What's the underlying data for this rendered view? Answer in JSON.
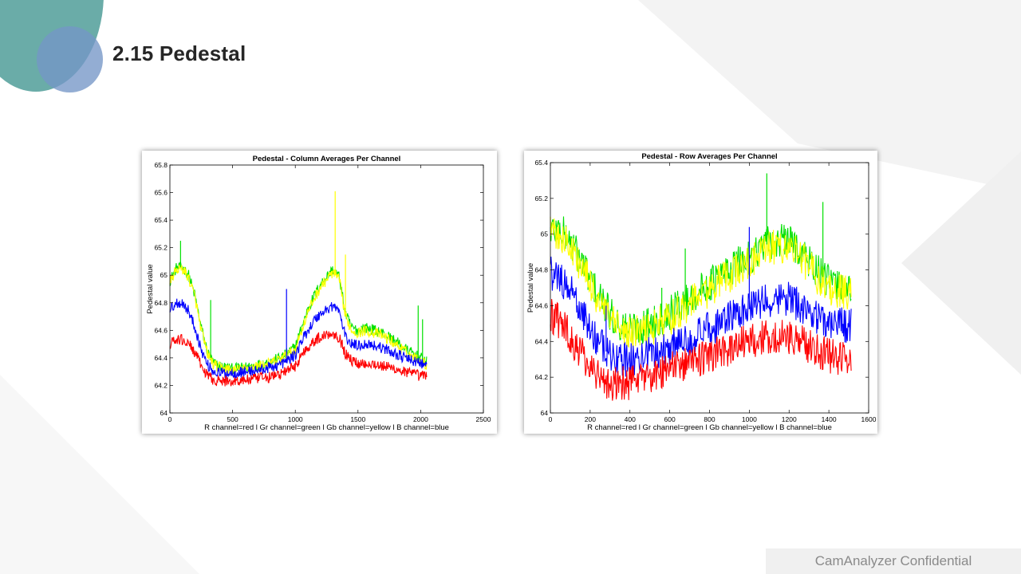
{
  "slide": {
    "title": "2.15  Pedestal",
    "footer": "CamAnalyzer  Confidential"
  },
  "colors": {
    "accent_teal": "#6aaca8",
    "accent_blue": "#7496c6",
    "red": "#ff0000",
    "green": "#00e000",
    "yellow": "#ffff00",
    "blue": "#0000ff"
  },
  "chart_data": [
    {
      "type": "line",
      "title": "Pedestal - Column Averages Per Channel",
      "xlabel": "R channel=red l Gr channel=green l Gb channel=yellow l B channel=blue",
      "ylabel": "Pedestal value",
      "xlim": [
        0,
        2500
      ],
      "ylim": [
        64,
        65.8
      ],
      "xticks": [
        0,
        500,
        1000,
        1500,
        2000,
        2500
      ],
      "yticks": [
        64,
        64.2,
        64.4,
        64.6,
        64.8,
        65,
        65.2,
        65.4,
        65.6,
        65.8
      ],
      "grid": false,
      "noise_estimate": 0.04,
      "series": [
        {
          "color": "green",
          "x": [
            0,
            50,
            100,
            150,
            200,
            250,
            300,
            350,
            400,
            450,
            500,
            600,
            700,
            800,
            900,
            1000,
            1050,
            1100,
            1150,
            1200,
            1250,
            1300,
            1350,
            1400,
            1450,
            1500,
            1550,
            1600,
            1700,
            1800,
            1900,
            2000,
            2048
          ],
          "values": [
            64.96,
            65.05,
            65.06,
            65.0,
            64.85,
            64.62,
            64.44,
            64.36,
            64.34,
            64.33,
            64.32,
            64.33,
            64.35,
            64.37,
            64.41,
            64.48,
            64.62,
            64.75,
            64.85,
            64.93,
            64.99,
            65.04,
            64.99,
            64.72,
            64.62,
            64.6,
            64.62,
            64.61,
            64.58,
            64.52,
            64.45,
            64.4,
            64.37
          ]
        },
        {
          "color": "yellow",
          "x": [
            0,
            50,
            100,
            150,
            200,
            250,
            300,
            350,
            400,
            450,
            500,
            600,
            700,
            800,
            900,
            1000,
            1050,
            1100,
            1150,
            1200,
            1250,
            1300,
            1350,
            1400,
            1450,
            1500,
            1550,
            1600,
            1700,
            1800,
            1900,
            2000,
            2048
          ],
          "values": [
            64.95,
            65.04,
            65.05,
            64.98,
            64.84,
            64.6,
            64.43,
            64.35,
            64.33,
            64.32,
            64.31,
            64.32,
            64.34,
            64.36,
            64.4,
            64.46,
            64.6,
            64.73,
            64.83,
            64.91,
            64.97,
            65.02,
            64.97,
            64.7,
            64.6,
            64.58,
            64.6,
            64.59,
            64.56,
            64.5,
            64.43,
            64.38,
            64.35
          ]
        },
        {
          "color": "blue",
          "x": [
            0,
            50,
            100,
            150,
            200,
            250,
            300,
            350,
            400,
            450,
            500,
            600,
            700,
            800,
            900,
            1000,
            1050,
            1100,
            1150,
            1200,
            1250,
            1300,
            1350,
            1400,
            1450,
            1500,
            1550,
            1600,
            1700,
            1800,
            1900,
            2000,
            2048
          ],
          "values": [
            64.75,
            64.8,
            64.8,
            64.74,
            64.62,
            64.46,
            64.35,
            64.3,
            64.29,
            64.29,
            64.29,
            64.3,
            64.31,
            64.33,
            64.36,
            64.42,
            64.52,
            64.6,
            64.67,
            64.72,
            64.75,
            64.78,
            64.74,
            64.55,
            64.5,
            64.49,
            64.5,
            64.5,
            64.47,
            64.43,
            64.39,
            64.36,
            64.34
          ]
        },
        {
          "color": "red",
          "x": [
            0,
            50,
            100,
            150,
            200,
            250,
            300,
            350,
            400,
            450,
            500,
            600,
            700,
            800,
            900,
            1000,
            1050,
            1100,
            1150,
            1200,
            1250,
            1300,
            1350,
            1400,
            1450,
            1500,
            1550,
            1600,
            1700,
            1800,
            1900,
            2000,
            2048
          ],
          "values": [
            64.5,
            64.53,
            64.53,
            64.5,
            64.44,
            64.34,
            64.27,
            64.24,
            64.23,
            64.23,
            64.23,
            64.24,
            64.25,
            64.26,
            64.29,
            64.34,
            64.42,
            64.48,
            64.52,
            64.55,
            64.57,
            64.58,
            64.55,
            64.43,
            64.38,
            64.36,
            64.36,
            64.36,
            64.34,
            64.32,
            64.29,
            64.27,
            64.27
          ]
        }
      ],
      "spikes": [
        {
          "color": "green",
          "x": 325,
          "y": 64.82
        },
        {
          "color": "blue",
          "x": 930,
          "y": 64.9
        },
        {
          "color": "yellow",
          "x": 1318,
          "y": 65.61
        },
        {
          "color": "yellow",
          "x": 1400,
          "y": 65.15
        },
        {
          "color": "green",
          "x": 1980,
          "y": 64.78
        },
        {
          "color": "green",
          "x": 2015,
          "y": 64.68
        },
        {
          "color": "green",
          "x": 85,
          "y": 65.25
        }
      ]
    },
    {
      "type": "line",
      "title": "Pedestal - Row Averages Per Channel",
      "xlabel": "R channel=red l Gr channel=green l Gb channel=yellow l B channel=blue",
      "ylabel": "Pedestal value",
      "xlim": [
        0,
        1600
      ],
      "ylim": [
        64,
        65.4
      ],
      "xticks": [
        0,
        200,
        400,
        600,
        800,
        1000,
        1200,
        1400,
        1600
      ],
      "yticks": [
        64,
        64.2,
        64.4,
        64.6,
        64.8,
        65,
        65.2,
        65.4
      ],
      "grid": false,
      "noise_estimate": 0.1,
      "series": [
        {
          "color": "green",
          "x": [
            0,
            50,
            100,
            150,
            200,
            250,
            300,
            350,
            400,
            450,
            500,
            600,
            700,
            800,
            900,
            1000,
            1050,
            1100,
            1150,
            1200,
            1250,
            1300,
            1350,
            1400,
            1450,
            1500,
            1512
          ],
          "values": [
            65.03,
            65.02,
            64.96,
            64.86,
            64.75,
            64.64,
            64.55,
            64.49,
            64.47,
            64.48,
            64.5,
            64.56,
            64.64,
            64.72,
            64.8,
            64.87,
            64.92,
            64.95,
            64.96,
            64.96,
            64.92,
            64.85,
            64.78,
            64.73,
            64.71,
            64.7,
            64.7
          ]
        },
        {
          "color": "yellow",
          "x": [
            0,
            50,
            100,
            150,
            200,
            250,
            300,
            350,
            400,
            450,
            500,
            600,
            700,
            800,
            900,
            1000,
            1050,
            1100,
            1150,
            1200,
            1250,
            1300,
            1350,
            1400,
            1450,
            1500,
            1512
          ],
          "values": [
            65.0,
            64.99,
            64.93,
            64.83,
            64.72,
            64.61,
            64.52,
            64.46,
            64.44,
            64.45,
            64.47,
            64.53,
            64.61,
            64.69,
            64.77,
            64.84,
            64.89,
            64.92,
            64.93,
            64.93,
            64.89,
            64.82,
            64.75,
            64.7,
            64.68,
            64.67,
            64.67
          ]
        },
        {
          "color": "blue",
          "x": [
            0,
            50,
            100,
            150,
            200,
            250,
            300,
            350,
            400,
            450,
            500,
            600,
            700,
            800,
            900,
            1000,
            1050,
            1100,
            1150,
            1200,
            1250,
            1300,
            1350,
            1400,
            1450,
            1500,
            1512
          ],
          "values": [
            64.78,
            64.75,
            64.68,
            64.58,
            64.47,
            64.38,
            64.32,
            64.3,
            64.3,
            64.31,
            64.33,
            64.37,
            64.42,
            64.47,
            64.53,
            64.58,
            64.61,
            64.63,
            64.64,
            64.64,
            64.61,
            64.57,
            64.53,
            64.51,
            64.5,
            64.49,
            64.49
          ]
        },
        {
          "color": "red",
          "x": [
            0,
            50,
            100,
            150,
            200,
            250,
            300,
            350,
            400,
            450,
            500,
            600,
            700,
            800,
            900,
            1000,
            1050,
            1100,
            1150,
            1200,
            1250,
            1300,
            1350,
            1400,
            1450,
            1500,
            1512
          ],
          "values": [
            64.55,
            64.5,
            64.43,
            64.34,
            64.26,
            64.2,
            64.17,
            64.16,
            64.17,
            64.18,
            64.2,
            64.24,
            64.28,
            64.32,
            64.36,
            64.4,
            64.42,
            64.43,
            64.43,
            64.42,
            64.4,
            64.37,
            64.34,
            64.32,
            64.31,
            64.31,
            64.31
          ]
        }
      ],
      "spikes": [
        {
          "color": "green",
          "x": 1088,
          "y": 65.34
        },
        {
          "color": "green",
          "x": 678,
          "y": 64.92
        },
        {
          "color": "green",
          "x": 1370,
          "y": 65.18
        },
        {
          "color": "blue",
          "x": 1000,
          "y": 65.04
        },
        {
          "color": "blue",
          "x": 280,
          "y": 64.6
        },
        {
          "color": "green",
          "x": 560,
          "y": 64.7
        }
      ]
    }
  ]
}
